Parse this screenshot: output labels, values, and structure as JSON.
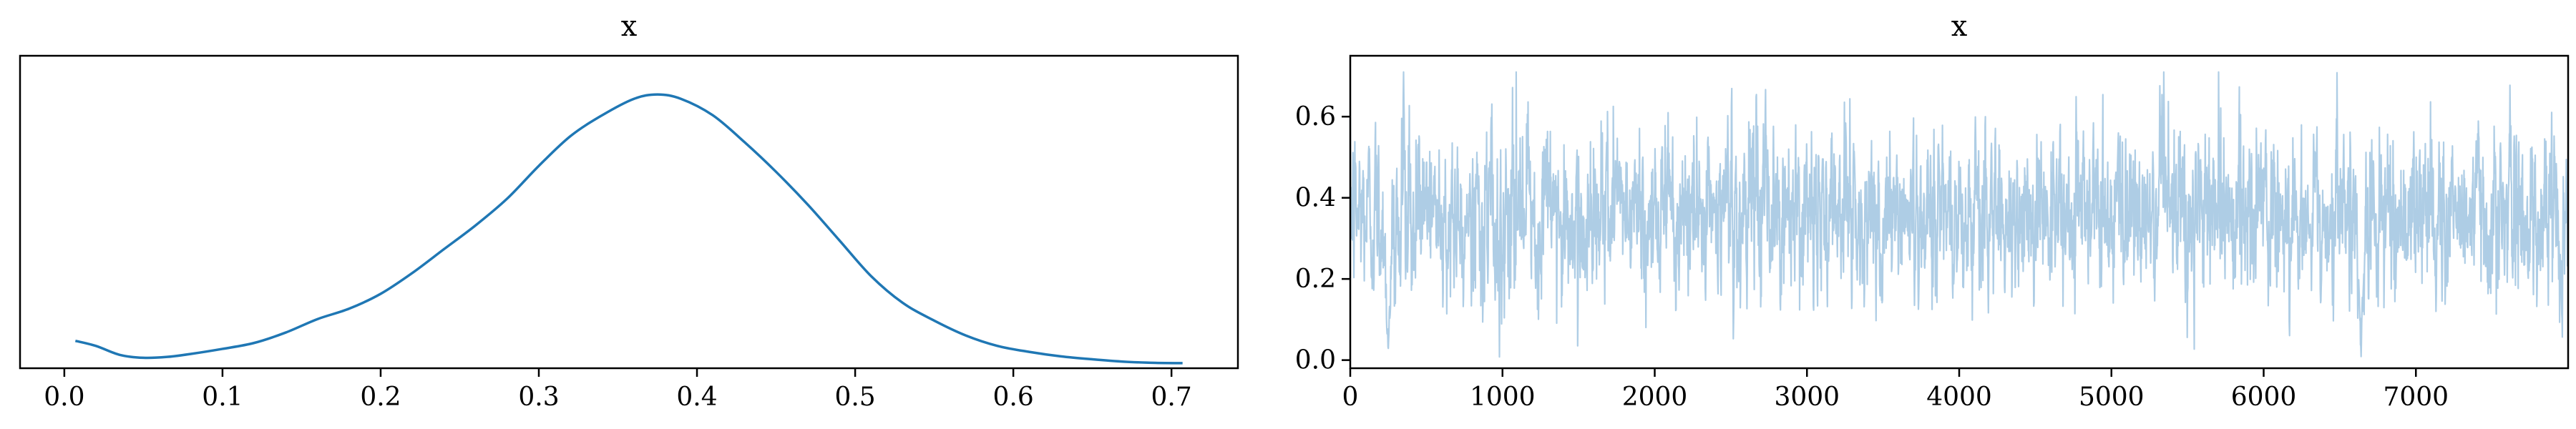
{
  "chart_data": [
    {
      "type": "line",
      "title": "x",
      "xlabel": "",
      "ylabel": "",
      "xlim": [
        -0.028,
        0.742
      ],
      "ylim": [
        0,
        1.05
      ],
      "xticks": [
        0.0,
        0.1,
        0.2,
        0.3,
        0.4,
        0.5,
        0.6,
        0.7
      ],
      "xtick_labels": [
        "0.0",
        "0.1",
        "0.2",
        "0.3",
        "0.4",
        "0.5",
        "0.6",
        "0.7"
      ],
      "yticks": [],
      "grid": false,
      "color": "#1f77b4",
      "series": [
        {
          "x": [
            0.007,
            0.02,
            0.035,
            0.05,
            0.065,
            0.08,
            0.1,
            0.12,
            0.14,
            0.16,
            0.18,
            0.2,
            0.22,
            0.24,
            0.26,
            0.28,
            0.3,
            0.32,
            0.34,
            0.36,
            0.375,
            0.39,
            0.41,
            0.43,
            0.45,
            0.47,
            0.49,
            0.51,
            0.53,
            0.55,
            0.57,
            0.59,
            0.61,
            0.63,
            0.65,
            0.67,
            0.69,
            0.707
          ],
          "y": [
            0.092,
            0.075,
            0.045,
            0.035,
            0.038,
            0.048,
            0.065,
            0.085,
            0.12,
            0.165,
            0.2,
            0.25,
            0.32,
            0.4,
            0.48,
            0.57,
            0.68,
            0.78,
            0.85,
            0.905,
            0.92,
            0.905,
            0.85,
            0.76,
            0.66,
            0.55,
            0.43,
            0.31,
            0.22,
            0.16,
            0.11,
            0.075,
            0.055,
            0.04,
            0.03,
            0.022,
            0.018,
            0.017
          ]
        }
      ]
    },
    {
      "type": "line",
      "title": "x",
      "xlabel": "",
      "ylabel": "",
      "xlim": [
        0,
        8000
      ],
      "ylim": [
        -0.02,
        0.75
      ],
      "xticks": [
        0,
        1000,
        2000,
        3000,
        4000,
        5000,
        6000,
        7000
      ],
      "xtick_labels": [
        "0",
        "1000",
        "2000",
        "3000",
        "4000",
        "5000",
        "6000",
        "7000"
      ],
      "yticks": [
        0.0,
        0.2,
        0.4,
        0.6
      ],
      "ytick_labels": [
        "0.0",
        "0.2",
        "0.4",
        "0.6"
      ],
      "grid": false,
      "color": "#aecde5",
      "trace": {
        "n_draws": 8000,
        "mean": 0.36,
        "sd": 0.1,
        "max": 0.71,
        "max_at": 1090,
        "dips": [
          {
            "at": 250,
            "min": 0.01
          },
          {
            "at": 6640,
            "min": 0.005
          }
        ]
      }
    }
  ]
}
